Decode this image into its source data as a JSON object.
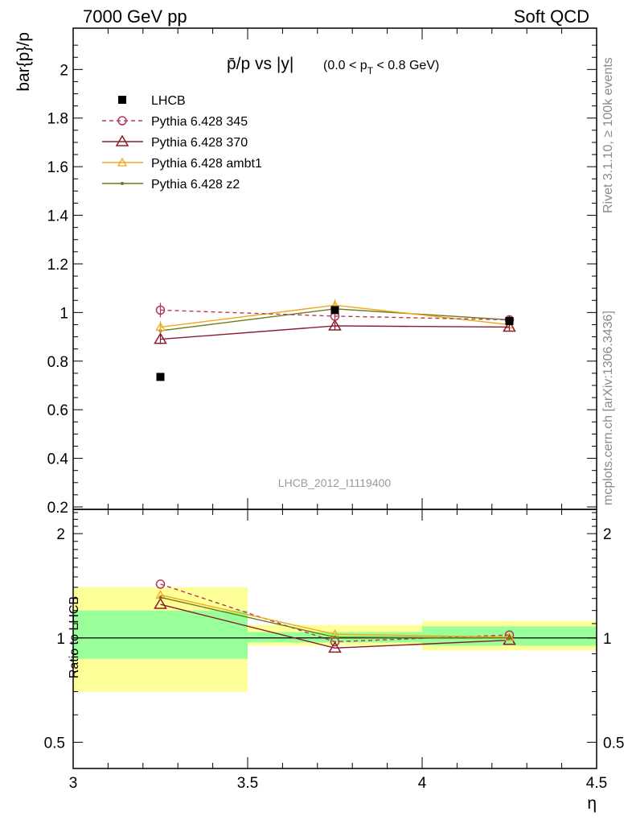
{
  "header": {
    "left": "7000 GeV pp",
    "right": "Soft QCD"
  },
  "plot_title": {
    "main": "p̄/p vs |y|",
    "cut_prefix": "(0.0 < p",
    "cut_sub": "T",
    "cut_suffix": " < 0.8 GeV)"
  },
  "side_labels": {
    "rivet": "Rivet 3.1.10, ≥ 100k events",
    "mcplots": "mcplots.cern.ch [arXiv:1306.3436]"
  },
  "watermark": "LHCB_2012_I1119400",
  "colors": {
    "data": "#000000",
    "p345": "#b03a5a",
    "p370": "#8b1a2b",
    "ambt1": "#f0a818",
    "z2": "#6b7a1a",
    "band_outer": "#ffff99",
    "band_inner": "#99ff99"
  },
  "chart_data": [
    {
      "type": "line",
      "panel": "main",
      "ylabel": "bar{p}/p",
      "xlim": [
        3.0,
        4.5
      ],
      "ylim": [
        0.19,
        2.17
      ],
      "y_ticks": [
        "0.2",
        "0.4",
        "0.6",
        "0.8",
        "1",
        "1.2",
        "1.4",
        "1.6",
        "1.8",
        "2"
      ],
      "legend_position": "top-left",
      "series": [
        {
          "name": "LHCB",
          "marker": "square",
          "x": [
            3.25,
            3.75,
            4.25
          ],
          "y": [
            0.735,
            1.01,
            0.965
          ],
          "yerr": [
            0.01,
            0.01,
            0.02
          ]
        },
        {
          "name": "Pythia 6.428 345",
          "marker": "circle",
          "linestyle": "dashed",
          "x": [
            3.25,
            3.75,
            4.25
          ],
          "y": [
            1.01,
            0.985,
            0.97
          ],
          "yerr": [
            0.03,
            0.015,
            0.015
          ]
        },
        {
          "name": "Pythia 6.428 370",
          "marker": "triangle",
          "linestyle": "solid",
          "x": [
            3.25,
            3.75,
            4.25
          ],
          "y": [
            0.89,
            0.945,
            0.94
          ],
          "yerr": [
            0.02,
            0.015,
            0.015
          ]
        },
        {
          "name": "Pythia 6.428 ambt1",
          "marker": "small-triangle",
          "linestyle": "solid",
          "x": [
            3.25,
            3.75,
            4.25
          ],
          "y": [
            0.94,
            1.03,
            0.95
          ],
          "yerr": [
            0.025,
            0.025,
            0.02
          ]
        },
        {
          "name": "Pythia 6.428 z2",
          "marker": "dot",
          "linestyle": "solid",
          "x": [
            3.25,
            3.75,
            4.25
          ],
          "y": [
            0.925,
            1.015,
            0.97
          ],
          "yerr": [
            0.02,
            0.02,
            0.015
          ]
        }
      ]
    },
    {
      "type": "line",
      "panel": "ratio",
      "xlabel": "η",
      "ylabel": "Ratio to LHCB",
      "yscale": "log",
      "xlim": [
        3.0,
        4.5
      ],
      "ylim": [
        0.42,
        2.35
      ],
      "x_ticks": [
        "3",
        "3.5",
        "4",
        "4.5"
      ],
      "y_ticks": [
        "0.5",
        "1",
        "2"
      ],
      "bands": [
        {
          "x0": 3.0,
          "x1": 3.5,
          "outer": [
            0.7,
            1.4
          ],
          "inner": [
            0.87,
            1.2
          ]
        },
        {
          "x0": 3.5,
          "x1": 4.0,
          "outer": [
            0.95,
            1.09
          ],
          "inner": [
            0.97,
            1.04
          ]
        },
        {
          "x0": 4.0,
          "x1": 4.5,
          "outer": [
            0.92,
            1.12
          ],
          "inner": [
            0.95,
            1.08
          ]
        }
      ],
      "series": [
        {
          "name": "Pythia 6.428 345",
          "x": [
            3.25,
            3.75,
            4.25
          ],
          "y": [
            1.43,
            0.975,
            1.02
          ]
        },
        {
          "name": "Pythia 6.428 370",
          "x": [
            3.25,
            3.75,
            4.25
          ],
          "y": [
            1.25,
            0.935,
            0.985
          ]
        },
        {
          "name": "Pythia 6.428 ambt1",
          "x": [
            3.25,
            3.75,
            4.25
          ],
          "y": [
            1.33,
            1.025,
            1.005
          ]
        },
        {
          "name": "Pythia 6.428 z2",
          "x": [
            3.25,
            3.75,
            4.25
          ],
          "y": [
            1.31,
            1.005,
            1.0
          ]
        }
      ]
    }
  ]
}
